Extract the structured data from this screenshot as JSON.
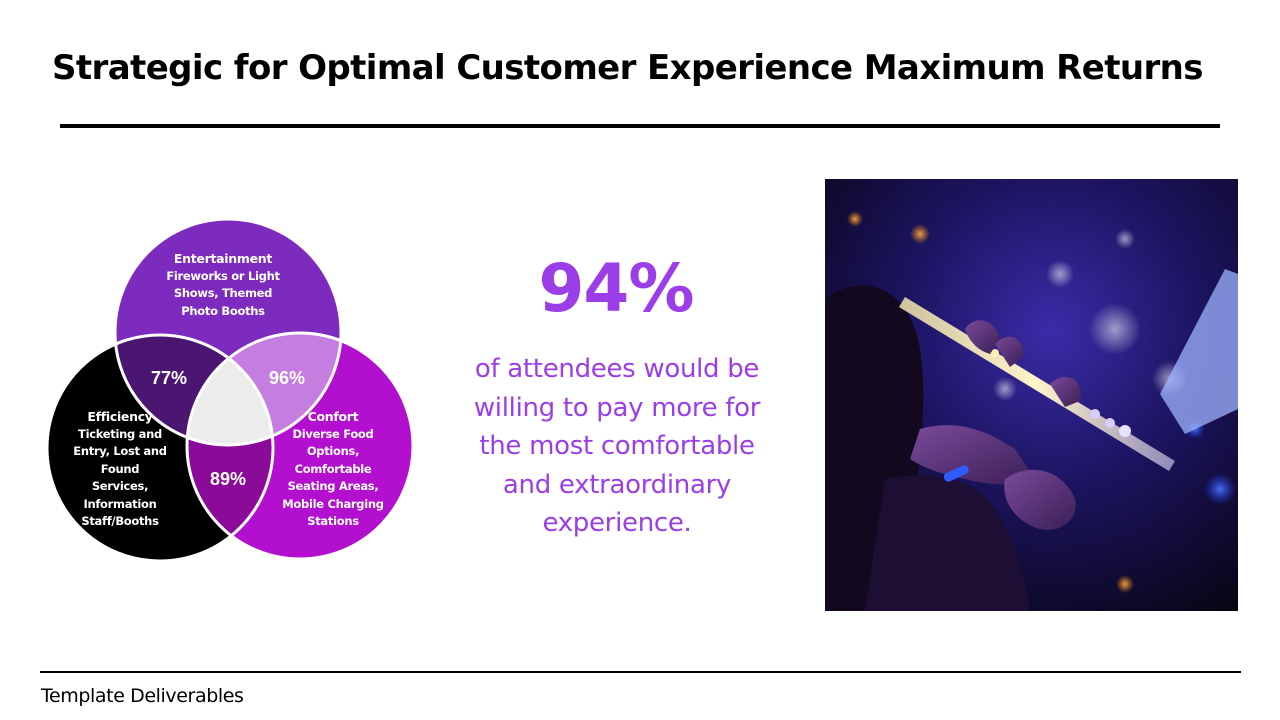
{
  "title": "Strategic for Optimal Customer Experience Maximum Returns",
  "footer": "Template Deliverables",
  "venn": {
    "entertainment": {
      "heading": "Entertainment",
      "lines": [
        "Fireworks or Light",
        "Shows, Themed",
        "Photo Booths"
      ]
    },
    "efficiency": {
      "heading": "Efficiency",
      "lines": [
        "Ticketing and",
        "Entry, Lost and",
        "Found",
        "Services,",
        "Information",
        "Staff/Booths"
      ]
    },
    "confort": {
      "heading": "Confort",
      "lines": [
        "Diverse Food",
        "Options,",
        "Comfortable",
        "Seating Areas,",
        "Mobile Charging",
        "Stations"
      ]
    },
    "overlaps": {
      "entertainment_efficiency": "77%",
      "entertainment_confort": "96%",
      "efficiency_confort": "89%"
    },
    "colors": {
      "entertainment": "#7d2bbf",
      "efficiency": "#000000",
      "confort": "#b30fcf",
      "ent_eff": "#4a1672",
      "ent_conf": "#c57ddf",
      "eff_conf": "#8b0a99",
      "center": "#ececec"
    }
  },
  "stat": {
    "value": "94%",
    "text": "of attendees would be willing to pay more for the most comfortable and extraordinary experience."
  },
  "accent_color": "#9b3ee8",
  "photo": {
    "subject": "flute-player-stage-photo"
  }
}
